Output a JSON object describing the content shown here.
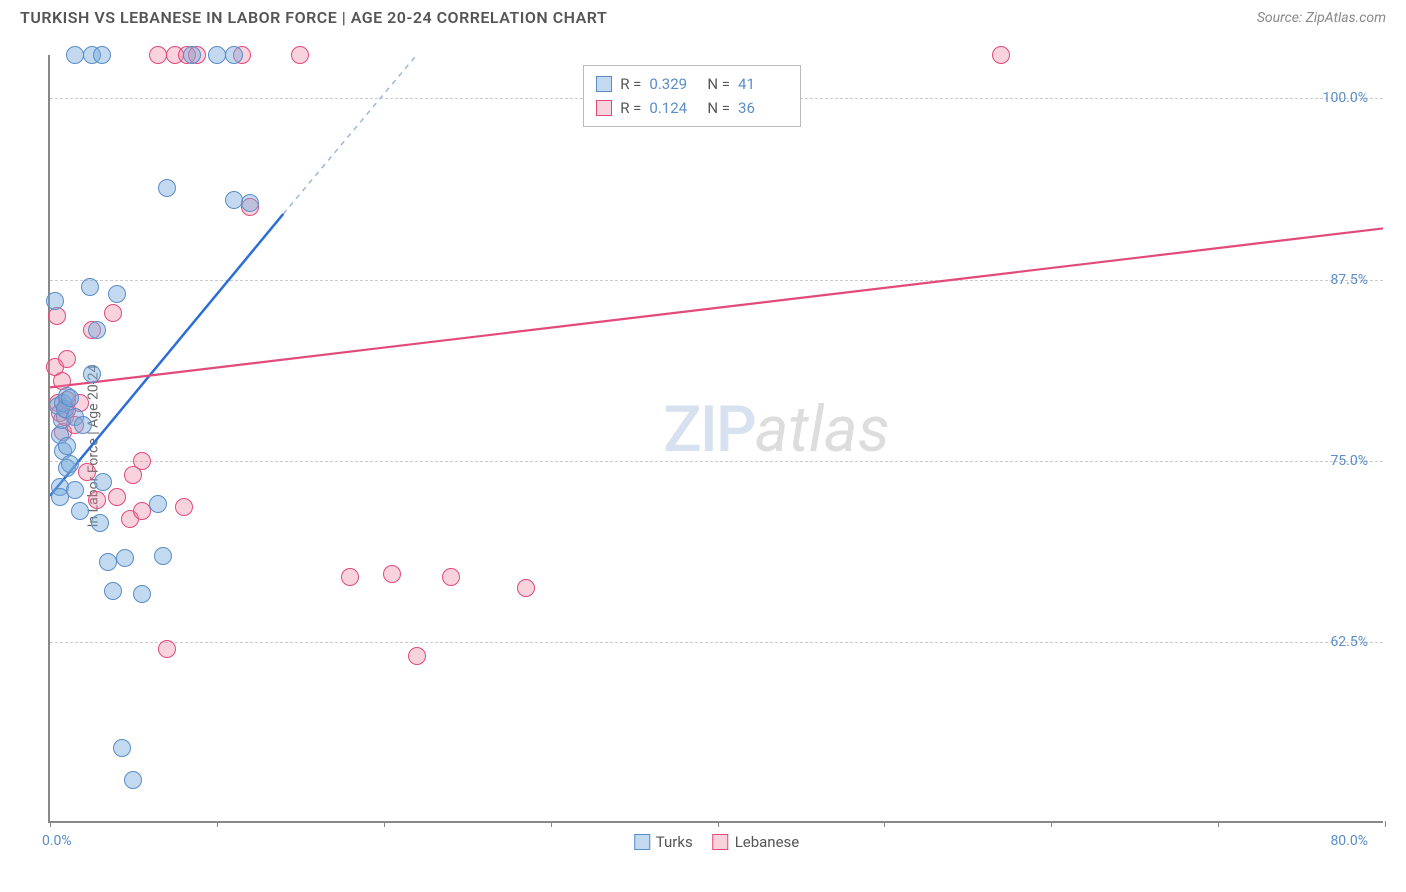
{
  "header": {
    "title": "TURKISH VS LEBANESE IN LABOR FORCE | AGE 20-24 CORRELATION CHART",
    "source": "Source: ZipAtlas.com"
  },
  "watermark": {
    "zip": "ZIP",
    "atlas": "atlas"
  },
  "chart": {
    "type": "scatter",
    "xlim": [
      0,
      80
    ],
    "ylim": [
      50,
      103
    ],
    "xtick_start": 0,
    "xtick_step": 10,
    "xtick_count": 9,
    "x_axis_labels": {
      "left": "0.0%",
      "right": "80.0%"
    },
    "y_gridlines": [
      62.5,
      75.0,
      87.5,
      100.0
    ],
    "y_axis_labels": [
      "62.5%",
      "75.0%",
      "87.5%",
      "100.0%"
    ],
    "y_axis_title": "In Labor Force | Age 20-24",
    "series": {
      "turks": {
        "label": "Turks",
        "color_fill": "rgba(120,170,220,0.45)",
        "color_stroke": "#5a8dc9",
        "marker_size": 18,
        "trend": {
          "color": "#2b6fd6",
          "width": 2.5,
          "x1": 0,
          "y1": 72.5,
          "x2": 14,
          "y2": 92,
          "dash_extend_to": [
            22,
            103
          ]
        },
        "points": [
          [
            0.3,
            86.0
          ],
          [
            0.5,
            78.8
          ],
          [
            0.6,
            73.2
          ],
          [
            0.6,
            72.5
          ],
          [
            0.6,
            76.8
          ],
          [
            0.7,
            77.8
          ],
          [
            0.8,
            79.0
          ],
          [
            0.8,
            75.7
          ],
          [
            0.9,
            78.6
          ],
          [
            1.0,
            79.5
          ],
          [
            1.0,
            76.0
          ],
          [
            1.0,
            74.5
          ],
          [
            1.2,
            74.8
          ],
          [
            1.2,
            79.3
          ],
          [
            1.5,
            73.0
          ],
          [
            1.5,
            78.0
          ],
          [
            1.5,
            103.0
          ],
          [
            1.8,
            71.5
          ],
          [
            2.0,
            77.5
          ],
          [
            2.4,
            87.0
          ],
          [
            2.5,
            81.0
          ],
          [
            2.5,
            103.0
          ],
          [
            2.8,
            84.0
          ],
          [
            3.0,
            70.7
          ],
          [
            3.1,
            103.0
          ],
          [
            3.2,
            73.5
          ],
          [
            3.5,
            68.0
          ],
          [
            3.8,
            66.0
          ],
          [
            4.0,
            86.5
          ],
          [
            4.3,
            55.2
          ],
          [
            4.5,
            68.3
          ],
          [
            5.0,
            53.0
          ],
          [
            5.5,
            65.8
          ],
          [
            6.5,
            72.0
          ],
          [
            6.8,
            68.4
          ],
          [
            7.0,
            93.8
          ],
          [
            8.5,
            103.0
          ],
          [
            10.0,
            103.0
          ],
          [
            11.0,
            103.0
          ],
          [
            11.0,
            93.0
          ],
          [
            12.0,
            92.8
          ]
        ]
      },
      "lebanese": {
        "label": "Lebanese",
        "color_fill": "rgba(235,130,160,0.35)",
        "color_stroke": "#e24a7a",
        "marker_size": 18,
        "trend": {
          "color": "#e24a7a",
          "width": 2.2,
          "x1": 0,
          "y1": 80.0,
          "x2": 80,
          "y2": 91.0
        },
        "points": [
          [
            0.3,
            81.5
          ],
          [
            0.4,
            85.0
          ],
          [
            0.5,
            79.0
          ],
          [
            0.6,
            78.3
          ],
          [
            0.7,
            80.5
          ],
          [
            0.8,
            77.0
          ],
          [
            0.9,
            78.0
          ],
          [
            1.0,
            78.5
          ],
          [
            1.0,
            82.0
          ],
          [
            1.0,
            79.2
          ],
          [
            1.5,
            77.5
          ],
          [
            1.8,
            79.0
          ],
          [
            2.2,
            74.2
          ],
          [
            2.5,
            84.0
          ],
          [
            2.8,
            72.3
          ],
          [
            3.8,
            85.2
          ],
          [
            4.0,
            72.5
          ],
          [
            4.8,
            71.0
          ],
          [
            5.0,
            74.0
          ],
          [
            5.5,
            75.0
          ],
          [
            5.5,
            71.5
          ],
          [
            6.5,
            103.0
          ],
          [
            7.0,
            62.0
          ],
          [
            7.5,
            103.0
          ],
          [
            8.0,
            71.8
          ],
          [
            8.2,
            103.0
          ],
          [
            8.8,
            103.0
          ],
          [
            12.0,
            92.5
          ],
          [
            11.5,
            103.0
          ],
          [
            15.0,
            103.0
          ],
          [
            18.0,
            67.0
          ],
          [
            20.5,
            67.2
          ],
          [
            22.0,
            61.5
          ],
          [
            24.0,
            67.0
          ],
          [
            28.5,
            66.2
          ],
          [
            57.0,
            103.0
          ]
        ]
      }
    }
  },
  "stats": {
    "rows": [
      {
        "swatch_fill": "rgba(120,170,220,0.45)",
        "swatch_border": "#5a8dc9",
        "r_label": "R =",
        "r_val": "0.329",
        "n_label": "N =",
        "n_val": "41"
      },
      {
        "swatch_fill": "rgba(235,130,160,0.35)",
        "swatch_border": "#e24a7a",
        "r_label": "R =",
        "r_val": "0.124",
        "n_label": "N =",
        "n_val": "36"
      }
    ]
  },
  "legend": {
    "turks": {
      "label": "Turks",
      "fill": "rgba(120,170,220,0.45)",
      "border": "#5a8dc9"
    },
    "lebanese": {
      "label": "Lebanese",
      "fill": "rgba(235,130,160,0.35)",
      "border": "#e24a7a"
    }
  }
}
